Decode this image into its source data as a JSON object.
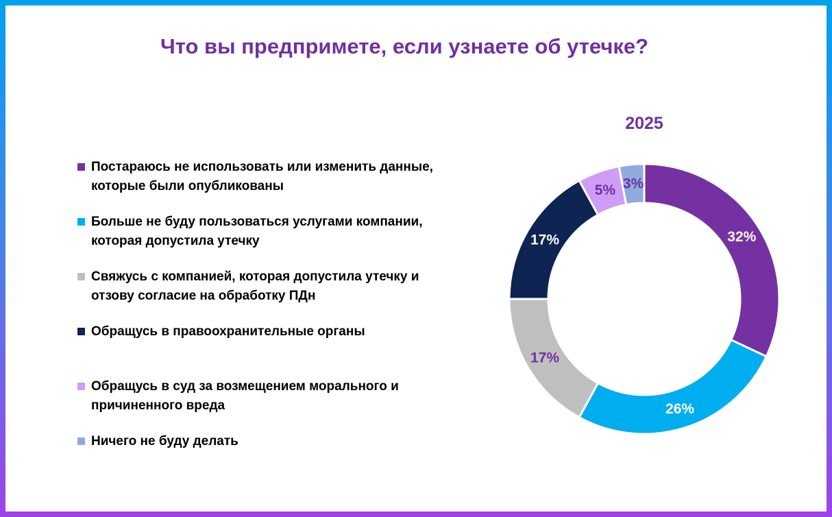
{
  "title": {
    "text": "Что вы предпримете, если узнаете об утечке?"
  },
  "chart_data": {
    "type": "pie",
    "subtype": "donut",
    "title": "2025",
    "unit": "%",
    "categories": [
      "Постараюсь не использовать или изменить данные, которые были опубликованы",
      "Больше не буду пользоваться услугами компании, которая допустила утечку",
      "Свяжусь с компанией, которая допустила утечку и отзову согласие на обработку ПДн",
      "Обращусь в правоохранительные органы",
      "Обращусь в суд за возмещением морального и причиненного вреда",
      "Ничего не буду делать"
    ],
    "values": [
      32,
      26,
      17,
      17,
      5,
      3
    ],
    "data_labels": [
      "32%",
      "26%",
      "17%",
      "17%",
      "5%",
      "3%"
    ],
    "colors": [
      "#7531A1",
      "#00AEEF",
      "#BFBFBF",
      "#0E2452",
      "#CE9DF7",
      "#8FAADC"
    ],
    "data_label_colors": [
      "#FFFFFF",
      "#FFFFFF",
      "#7030A0",
      "#FFFFFF",
      "#7030A0",
      "#7030A0"
    ],
    "start_angle_deg": 0,
    "direction": "clockwise",
    "donut_hole_ratio": 0.71,
    "slice_gap_color": "#FFFFFF",
    "legend_position": "left",
    "grid": false
  },
  "legend": {
    "items": [
      {
        "label": "Постараюсь не использовать или изменить данные,\nкоторые были опубликованы",
        "color": "#7531A1"
      },
      {
        "label": "Больше не буду пользоваться услугами компании,\nкоторая допустила утечку",
        "color": "#00AEEF"
      },
      {
        "label": "Свяжусь с компанией, которая допустила утечку и\nотзову согласие на обработку ПДн",
        "color": "#BFBFBF"
      },
      {
        "label": "Обращусь в правоохранительные органы",
        "color": "#0E2452"
      },
      {
        "label": "Обращусь в суд за возмещением морального и\nпричиненного вреда",
        "color": "#CE9DF7"
      },
      {
        "label": "Ничего не буду делать",
        "color": "#8FAADC"
      }
    ]
  },
  "frame": {
    "border_gradient_top": "#01A3EC",
    "border_gradient_bottom": "#9D43E9",
    "title_color": "#7030A0"
  }
}
